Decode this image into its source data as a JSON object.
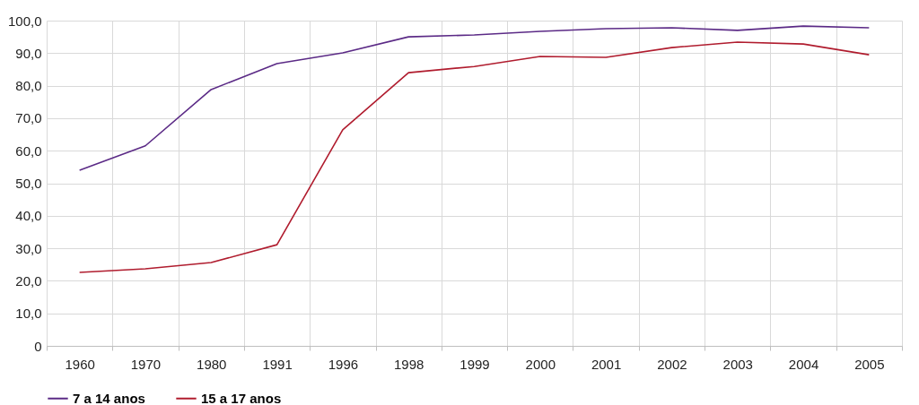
{
  "chart_data": {
    "type": "line",
    "categories": [
      "1960",
      "1970",
      "1980",
      "1991",
      "1996",
      "1998",
      "1999",
      "2000",
      "2001",
      "2002",
      "2003",
      "2004",
      "2005"
    ],
    "series": [
      {
        "name": "7 a 14 anos",
        "color": "#5b2a86",
        "values": [
          54.0,
          61.5,
          78.8,
          86.8,
          90.1,
          95.0,
          95.6,
          96.7,
          97.5,
          97.8,
          97.0,
          98.3,
          97.8
        ]
      },
      {
        "name": "15 a 17 anos",
        "color": "#b01c2e",
        "values": [
          22.6,
          23.7,
          25.6,
          31.1,
          66.4,
          84.0,
          85.9,
          89.0,
          88.7,
          91.7,
          93.4,
          92.8,
          89.5
        ]
      }
    ],
    "ylim": [
      0,
      100
    ],
    "yticks": [
      {
        "value": 0,
        "label": "0"
      },
      {
        "value": 10,
        "label": "10,0"
      },
      {
        "value": 20,
        "label": "20,0"
      },
      {
        "value": 30,
        "label": "30,0"
      },
      {
        "value": 40,
        "label": "40,0"
      },
      {
        "value": 50,
        "label": "50,0"
      },
      {
        "value": 60,
        "label": "60,0"
      },
      {
        "value": 70,
        "label": "70,0"
      },
      {
        "value": 80,
        "label": "80,0"
      },
      {
        "value": 90,
        "label": "90,0"
      },
      {
        "value": 100,
        "label": "100,0"
      }
    ],
    "grid": true,
    "legend": "bottom",
    "marker": "none",
    "line_style": "solid"
  }
}
